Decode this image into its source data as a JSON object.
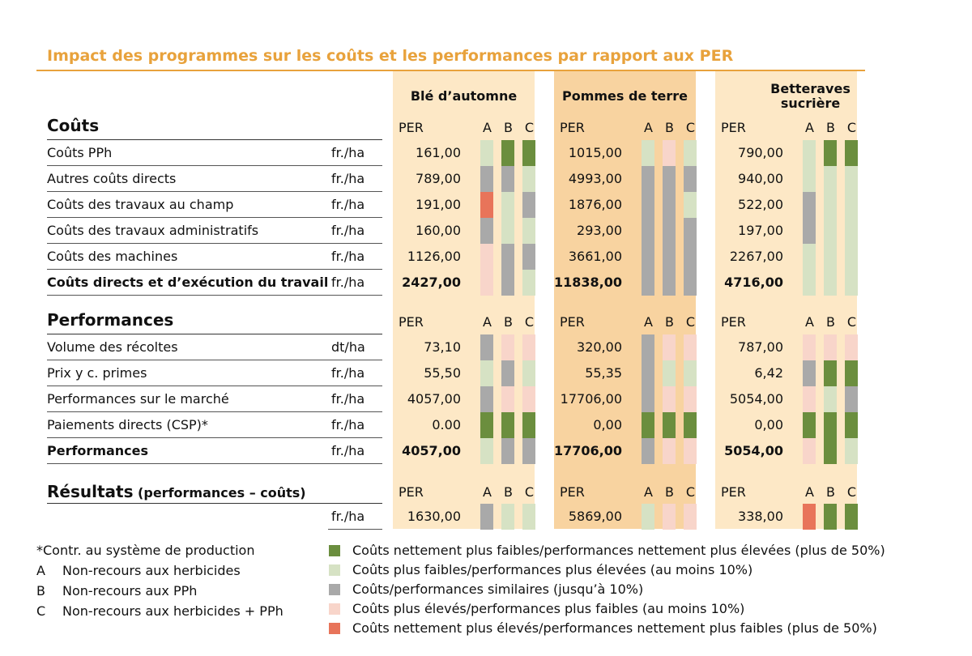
{
  "title": "Impact des programmes sur les coûts et les performances par rapport aux PER",
  "colors": {
    "accent": "#e8a23c",
    "panel_light": "#fde8c6",
    "panel_dark": "#f8d3a0",
    "dark_green": "#6b8e3e",
    "light_green": "#d6e2c4",
    "gray": "#a9a9a9",
    "light_pink": "#f8d5ca",
    "salmon": "#e8745a"
  },
  "crops": [
    "Blé d’automne",
    "Pommes de terre",
    "Betteraves sucrière"
  ],
  "per_label": "PER",
  "abc": [
    "A",
    "B",
    "C"
  ],
  "sections": [
    {
      "title": "Coûts",
      "rows": [
        {
          "label": "Coûts PPh",
          "unit": "fr./ha",
          "bold": false,
          "values": [
            "161,00",
            "1015,00",
            "790,00"
          ],
          "cells": [
            [
              "lg",
              "dg",
              "dg"
            ],
            [
              "lg",
              "lp",
              "lg"
            ],
            [
              "lg",
              "dg",
              "dg"
            ]
          ]
        },
        {
          "label": "Autres coûts directs",
          "unit": "fr./ha",
          "bold": false,
          "values": [
            "789,00",
            "4993,00",
            "940,00"
          ],
          "cells": [
            [
              "gr",
              "gr",
              "lg"
            ],
            [
              "gr",
              "gr",
              "gr"
            ],
            [
              "lg",
              "lg",
              "lg"
            ]
          ]
        },
        {
          "label": "Coûts des travaux au champ",
          "unit": "fr./ha",
          "bold": false,
          "values": [
            "191,00",
            "1876,00",
            "522,00"
          ],
          "cells": [
            [
              "sa",
              "lg",
              "gr"
            ],
            [
              "gr",
              "gr",
              "lg"
            ],
            [
              "gr",
              "lg",
              "lg"
            ]
          ]
        },
        {
          "label": "Coûts des travaux administratifs",
          "unit": "fr./ha",
          "bold": false,
          "values": [
            "160,00",
            "293,00",
            "197,00"
          ],
          "cells": [
            [
              "gr",
              "lg",
              "lg"
            ],
            [
              "gr",
              "gr",
              "gr"
            ],
            [
              "gr",
              "lg",
              "lg"
            ]
          ]
        },
        {
          "label": "Coûts des machines",
          "unit": "fr./ha",
          "bold": false,
          "values": [
            "1126,00",
            "3661,00",
            "2267,00"
          ],
          "cells": [
            [
              "lp",
              "gr",
              "gr"
            ],
            [
              "gr",
              "gr",
              "gr"
            ],
            [
              "lg",
              "lg",
              "lg"
            ]
          ]
        },
        {
          "label": "Coûts directs et d’exécution du travail",
          "unit": "fr./ha",
          "bold": true,
          "values": [
            "2427,00",
            "11838,00",
            "4716,00"
          ],
          "cells": [
            [
              "lp",
              "gr",
              "lg"
            ],
            [
              "gr",
              "gr",
              "gr"
            ],
            [
              "lg",
              "lg",
              "lg"
            ]
          ]
        }
      ]
    },
    {
      "title": "Performances",
      "rows": [
        {
          "label": "Volume des récoltes",
          "unit": "dt/ha",
          "bold": false,
          "values": [
            "73,10",
            "320,00",
            "787,00"
          ],
          "cells": [
            [
              "gr",
              "lp",
              "lp"
            ],
            [
              "gr",
              "lp",
              "lp"
            ],
            [
              "lp",
              "lp",
              "lp"
            ]
          ]
        },
        {
          "label": "Prix y c. primes",
          "unit": "fr./ha",
          "bold": false,
          "values": [
            "55,50",
            "55,35",
            "6,42"
          ],
          "cells": [
            [
              "lg",
              "gr",
              "lg"
            ],
            [
              "gr",
              "lg",
              "lg"
            ],
            [
              "gr",
              "dg",
              "dg"
            ]
          ]
        },
        {
          "label": "Performances sur le marché",
          "unit": "fr./ha",
          "bold": false,
          "values": [
            "4057,00",
            "17706,00",
            "5054,00"
          ],
          "cells": [
            [
              "gr",
              "lp",
              "lp"
            ],
            [
              "gr",
              "lp",
              "lp"
            ],
            [
              "lp",
              "lg",
              "gr"
            ]
          ]
        },
        {
          "label": "Paiements directs (CSP)*",
          "unit": "fr./ha",
          "bold": false,
          "values": [
            "0.00",
            "0,00",
            "0,00"
          ],
          "cells": [
            [
              "dg",
              "dg",
              "dg"
            ],
            [
              "dg",
              "dg",
              "dg"
            ],
            [
              "dg",
              "dg",
              "dg"
            ]
          ]
        },
        {
          "label": "Performances",
          "unit": "fr./ha",
          "bold": true,
          "values": [
            "4057,00",
            "17706,00",
            "5054,00"
          ],
          "cells": [
            [
              "lg",
              "gr",
              "gr"
            ],
            [
              "gr",
              "lp",
              "lp"
            ],
            [
              "lp",
              "dg",
              "lg"
            ]
          ]
        }
      ]
    },
    {
      "title": "Résultats",
      "title_suffix": "(performances – coûts)",
      "rows": [
        {
          "label": "",
          "unit": "fr./ha",
          "bold": false,
          "values": [
            "1630,00",
            "5869,00",
            "338,00"
          ],
          "cells": [
            [
              "gr",
              "lg",
              "lg"
            ],
            [
              "lg",
              "lp",
              "lp"
            ],
            [
              "sa",
              "dg",
              "dg"
            ]
          ]
        }
      ]
    }
  ],
  "footnote": "*Contr. au système de production",
  "programs": [
    {
      "key": "A",
      "text": "Non-recours aux herbicides"
    },
    {
      "key": "B",
      "text": "Non-recours aux PPh"
    },
    {
      "key": "C",
      "text": "Non-recours aux herbicides + PPh"
    }
  ],
  "legend": [
    {
      "color": "dg",
      "text": "Coûts nettement plus faibles/performances nettement plus élevées (plus de 50%)"
    },
    {
      "color": "lg",
      "text": "Coûts plus faibles/performances plus élevées (au moins 10%)"
    },
    {
      "color": "gr",
      "text": "Coûts/performances similaires (jusqu’à 10%)"
    },
    {
      "color": "lp",
      "text": "Coûts plus élevés/performances plus faibles (au moins 10%)"
    },
    {
      "color": "sa",
      "text": "Coûts nettement plus élevés/performances nettement plus faibles (plus de 50%)"
    }
  ]
}
